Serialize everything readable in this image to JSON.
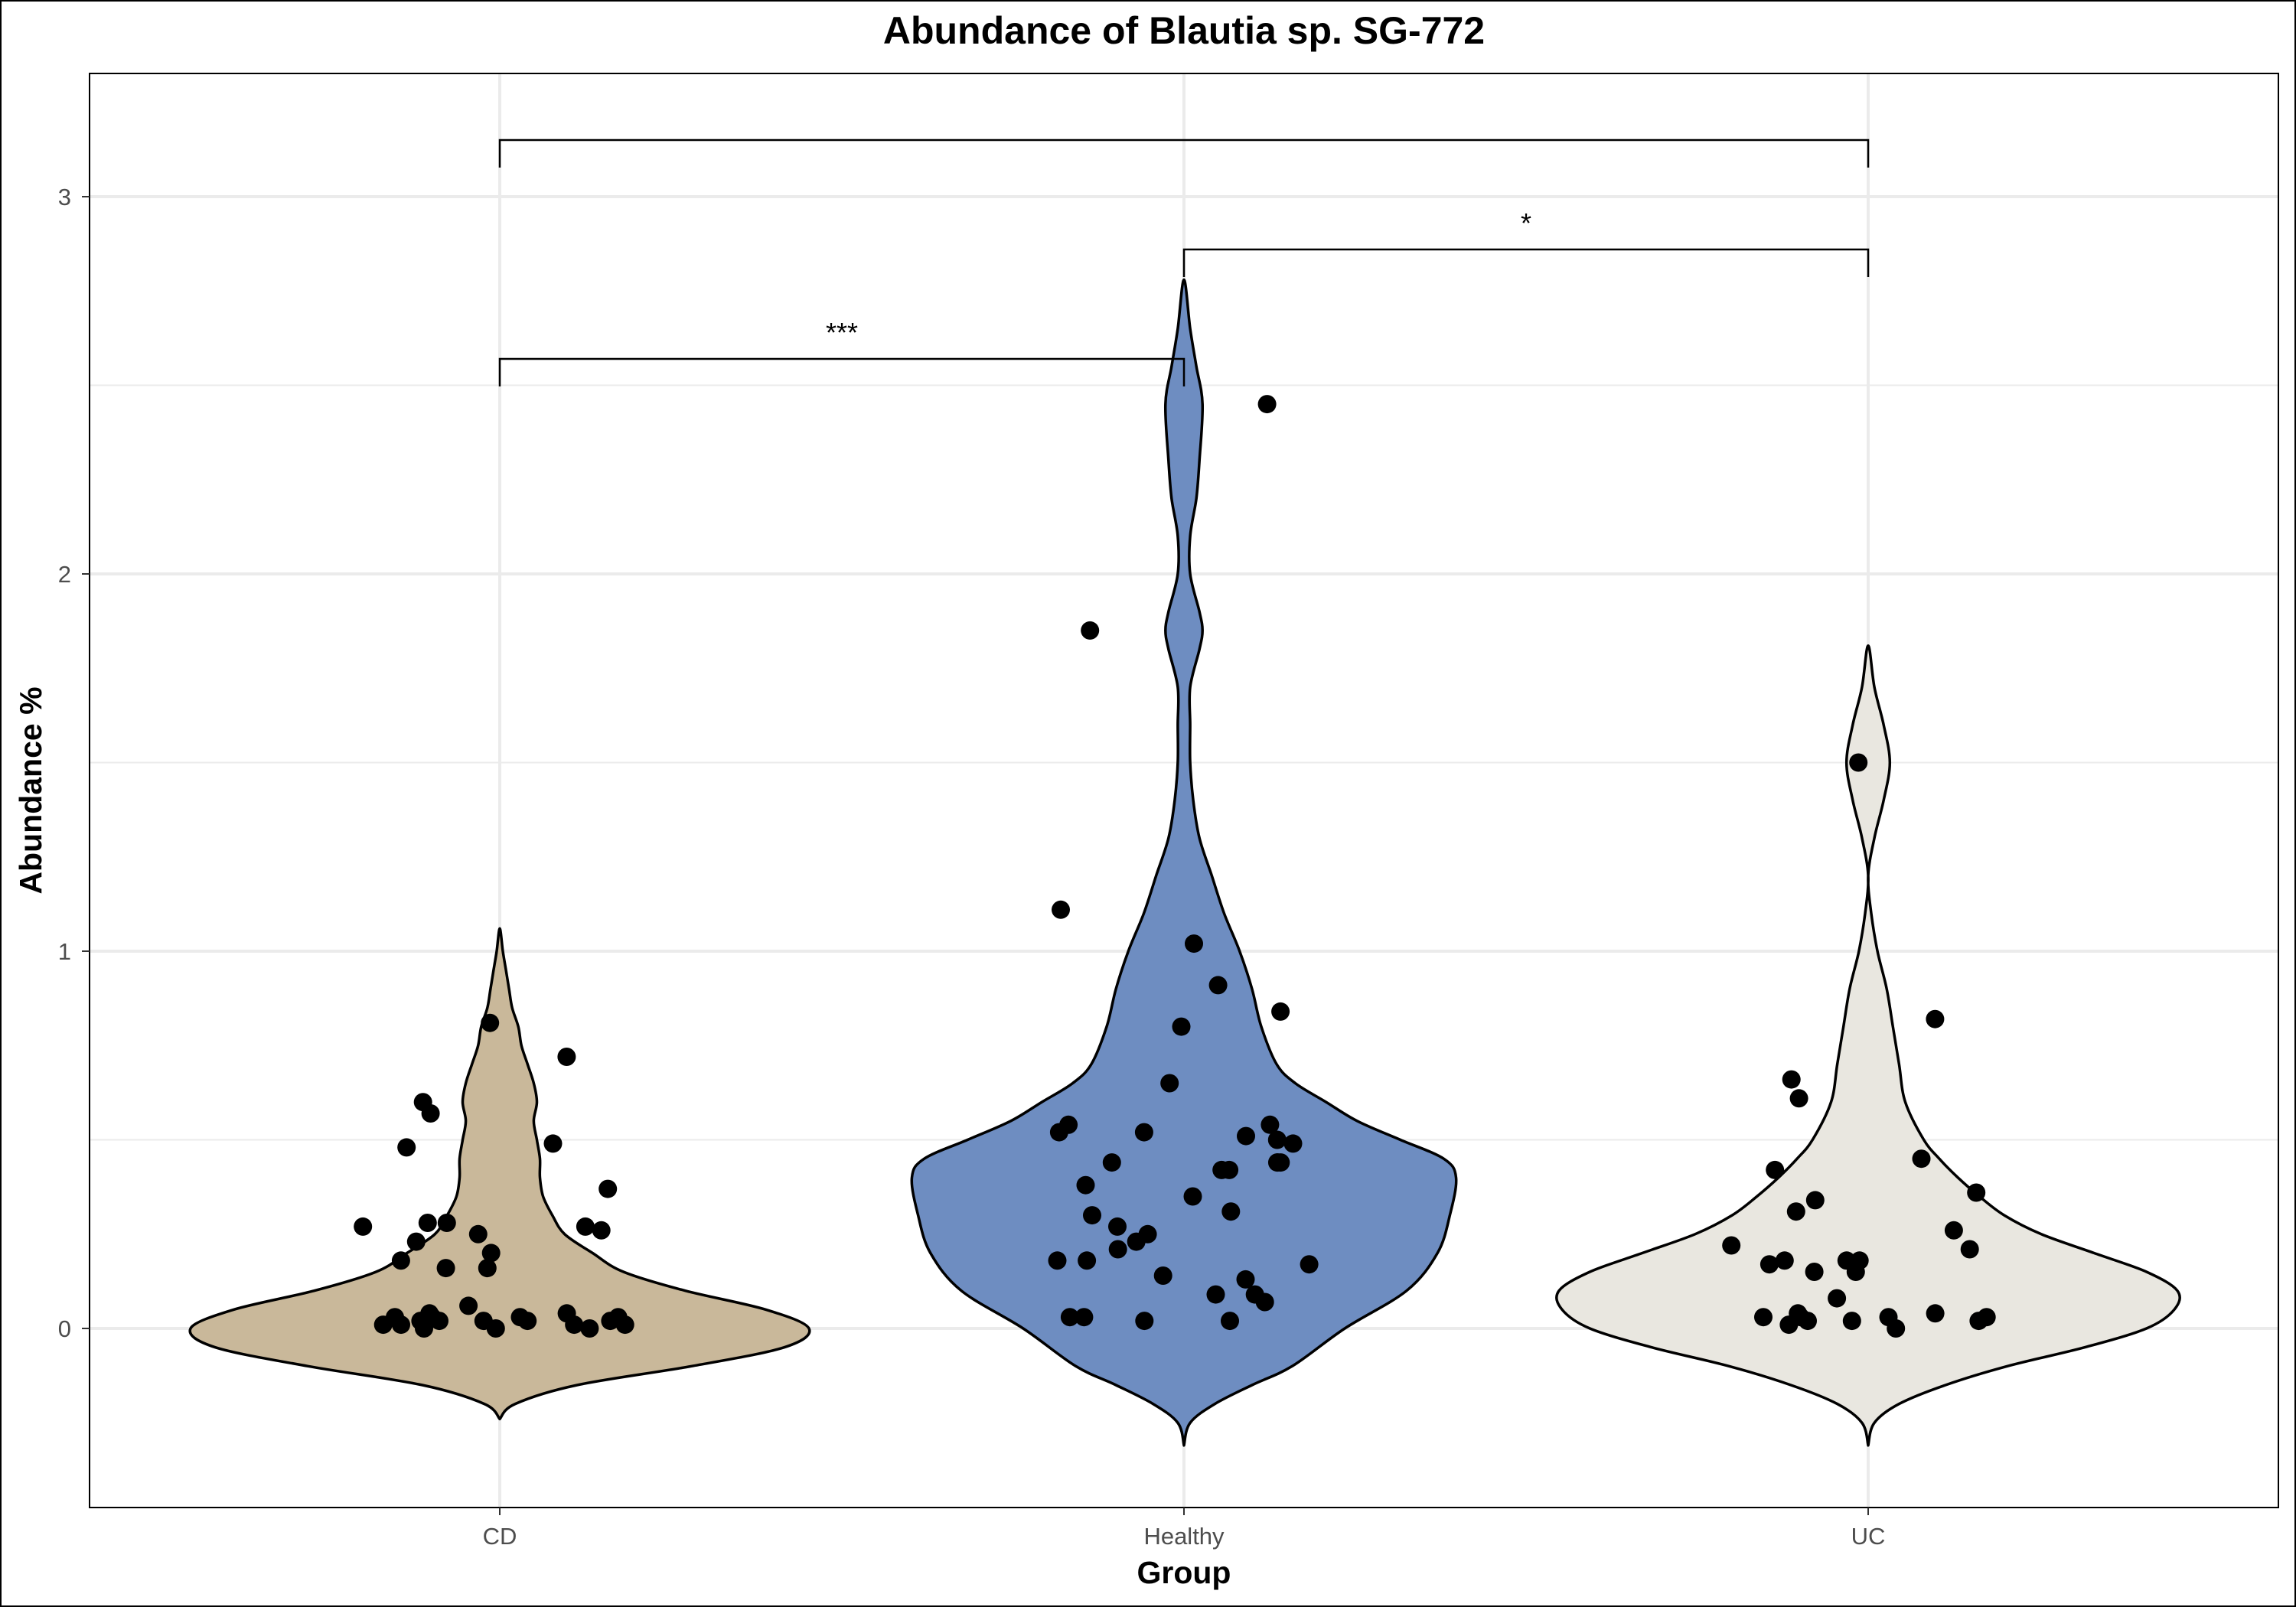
{
  "chart_data": {
    "type": "violin",
    "title": "Abundance of Blautia sp. SG-772",
    "xlabel": "Group",
    "ylabel": "Abundance %",
    "ylim": [
      -0.48,
      3.32
    ],
    "yticks": [
      0,
      1,
      2,
      3
    ],
    "grid": true,
    "categories": [
      "CD",
      "Healthy",
      "UC"
    ],
    "colors": {
      "CD": "#c9b89a",
      "Healthy": "#6e8dc1",
      "UC": "#e9e7e0"
    },
    "violins": [
      {
        "group": "CD",
        "range": [
          -0.24,
          1.06
        ],
        "profile": [
          [
            -0.24,
            0.0
          ],
          [
            -0.2,
            0.05
          ],
          [
            -0.15,
            0.25
          ],
          [
            -0.1,
            0.62
          ],
          [
            -0.05,
            0.92
          ],
          [
            0.0,
            1.0
          ],
          [
            0.05,
            0.86
          ],
          [
            0.1,
            0.6
          ],
          [
            0.15,
            0.4
          ],
          [
            0.2,
            0.3
          ],
          [
            0.25,
            0.21
          ],
          [
            0.3,
            0.17
          ],
          [
            0.35,
            0.14
          ],
          [
            0.4,
            0.13
          ],
          [
            0.45,
            0.13
          ],
          [
            0.5,
            0.12
          ],
          [
            0.55,
            0.11
          ],
          [
            0.6,
            0.12
          ],
          [
            0.65,
            0.11
          ],
          [
            0.7,
            0.09
          ],
          [
            0.75,
            0.07
          ],
          [
            0.8,
            0.06
          ],
          [
            0.85,
            0.04
          ],
          [
            0.9,
            0.03
          ],
          [
            0.95,
            0.02
          ],
          [
            1.0,
            0.01
          ],
          [
            1.06,
            0.0
          ]
        ]
      },
      {
        "group": "Healthy",
        "range": [
          -0.31,
          2.78
        ],
        "profile": [
          [
            -0.31,
            0.0
          ],
          [
            -0.25,
            0.02
          ],
          [
            -0.2,
            0.1
          ],
          [
            -0.15,
            0.22
          ],
          [
            -0.1,
            0.35
          ],
          [
            0.0,
            0.52
          ],
          [
            0.1,
            0.72
          ],
          [
            0.2,
            0.82
          ],
          [
            0.3,
            0.86
          ],
          [
            0.4,
            0.88
          ],
          [
            0.45,
            0.84
          ],
          [
            0.5,
            0.7
          ],
          [
            0.55,
            0.56
          ],
          [
            0.6,
            0.46
          ],
          [
            0.65,
            0.36
          ],
          [
            0.7,
            0.3
          ],
          [
            0.8,
            0.25
          ],
          [
            0.9,
            0.22
          ],
          [
            1.0,
            0.18
          ],
          [
            1.1,
            0.13
          ],
          [
            1.2,
            0.09
          ],
          [
            1.3,
            0.05
          ],
          [
            1.4,
            0.03
          ],
          [
            1.5,
            0.02
          ],
          [
            1.6,
            0.02
          ],
          [
            1.7,
            0.02
          ],
          [
            1.8,
            0.05
          ],
          [
            1.85,
            0.06
          ],
          [
            1.9,
            0.05
          ],
          [
            2.0,
            0.02
          ],
          [
            2.1,
            0.02
          ],
          [
            2.2,
            0.04
          ],
          [
            2.3,
            0.05
          ],
          [
            2.45,
            0.06
          ],
          [
            2.55,
            0.04
          ],
          [
            2.65,
            0.02
          ],
          [
            2.78,
            0.0
          ]
        ]
      },
      {
        "group": "UC",
        "range": [
          -0.31,
          1.81
        ],
        "profile": [
          [
            -0.31,
            0.0
          ],
          [
            -0.25,
            0.02
          ],
          [
            -0.2,
            0.1
          ],
          [
            -0.15,
            0.25
          ],
          [
            -0.1,
            0.45
          ],
          [
            -0.05,
            0.7
          ],
          [
            0.0,
            0.9
          ],
          [
            0.05,
            0.99
          ],
          [
            0.1,
            1.0
          ],
          [
            0.15,
            0.9
          ],
          [
            0.2,
            0.73
          ],
          [
            0.25,
            0.56
          ],
          [
            0.3,
            0.44
          ],
          [
            0.35,
            0.36
          ],
          [
            0.4,
            0.29
          ],
          [
            0.45,
            0.23
          ],
          [
            0.5,
            0.18
          ],
          [
            0.6,
            0.12
          ],
          [
            0.7,
            0.1
          ],
          [
            0.8,
            0.08
          ],
          [
            0.9,
            0.06
          ],
          [
            1.0,
            0.03
          ],
          [
            1.1,
            0.01
          ],
          [
            1.2,
            0.0
          ],
          [
            1.3,
            0.02
          ],
          [
            1.4,
            0.05
          ],
          [
            1.5,
            0.07
          ],
          [
            1.6,
            0.05
          ],
          [
            1.7,
            0.02
          ],
          [
            1.81,
            0.0
          ]
        ]
      }
    ],
    "points": [
      {
        "group": "CD",
        "values": [
          0.81,
          0.72,
          0.6,
          0.57,
          0.49,
          0.48,
          0.37,
          0.28,
          0.28,
          0.27,
          0.27,
          0.26,
          0.25,
          0.23,
          0.2,
          0.18,
          0.16,
          0.16,
          0.06,
          0.04,
          0.04,
          0.03,
          0.03,
          0.03,
          0.03,
          0.02,
          0.02,
          0.02,
          0.02,
          0.02,
          0.01,
          0.01,
          0.01,
          0.01,
          0.0,
          0.0,
          0.0
        ]
      },
      {
        "group": "Healthy",
        "values": [
          2.45,
          1.85,
          1.11,
          1.02,
          0.91,
          0.84,
          0.8,
          0.65,
          0.54,
          0.54,
          0.52,
          0.52,
          0.51,
          0.5,
          0.49,
          0.44,
          0.44,
          0.44,
          0.44,
          0.42,
          0.42,
          0.38,
          0.35,
          0.31,
          0.3,
          0.27,
          0.25,
          0.23,
          0.21,
          0.18,
          0.18,
          0.17,
          0.14,
          0.13,
          0.09,
          0.09,
          0.07,
          0.03,
          0.03,
          0.02,
          0.02
        ]
      },
      {
        "group": "UC",
        "values": [
          1.5,
          0.82,
          0.66,
          0.61,
          0.45,
          0.42,
          0.36,
          0.34,
          0.31,
          0.26,
          0.22,
          0.21,
          0.18,
          0.18,
          0.18,
          0.17,
          0.15,
          0.15,
          0.08,
          0.04,
          0.04,
          0.03,
          0.03,
          0.03,
          0.03,
          0.02,
          0.02,
          0.02,
          0.01,
          0.0
        ]
      }
    ],
    "comparisons": [
      {
        "from": "CD",
        "to": "Healthy",
        "y": 2.57,
        "label": "***"
      },
      {
        "from": "Healthy",
        "to": "UC",
        "y": 2.86,
        "label": "*"
      },
      {
        "from": "CD",
        "to": "UC",
        "y": 3.15,
        "label": ""
      }
    ]
  }
}
